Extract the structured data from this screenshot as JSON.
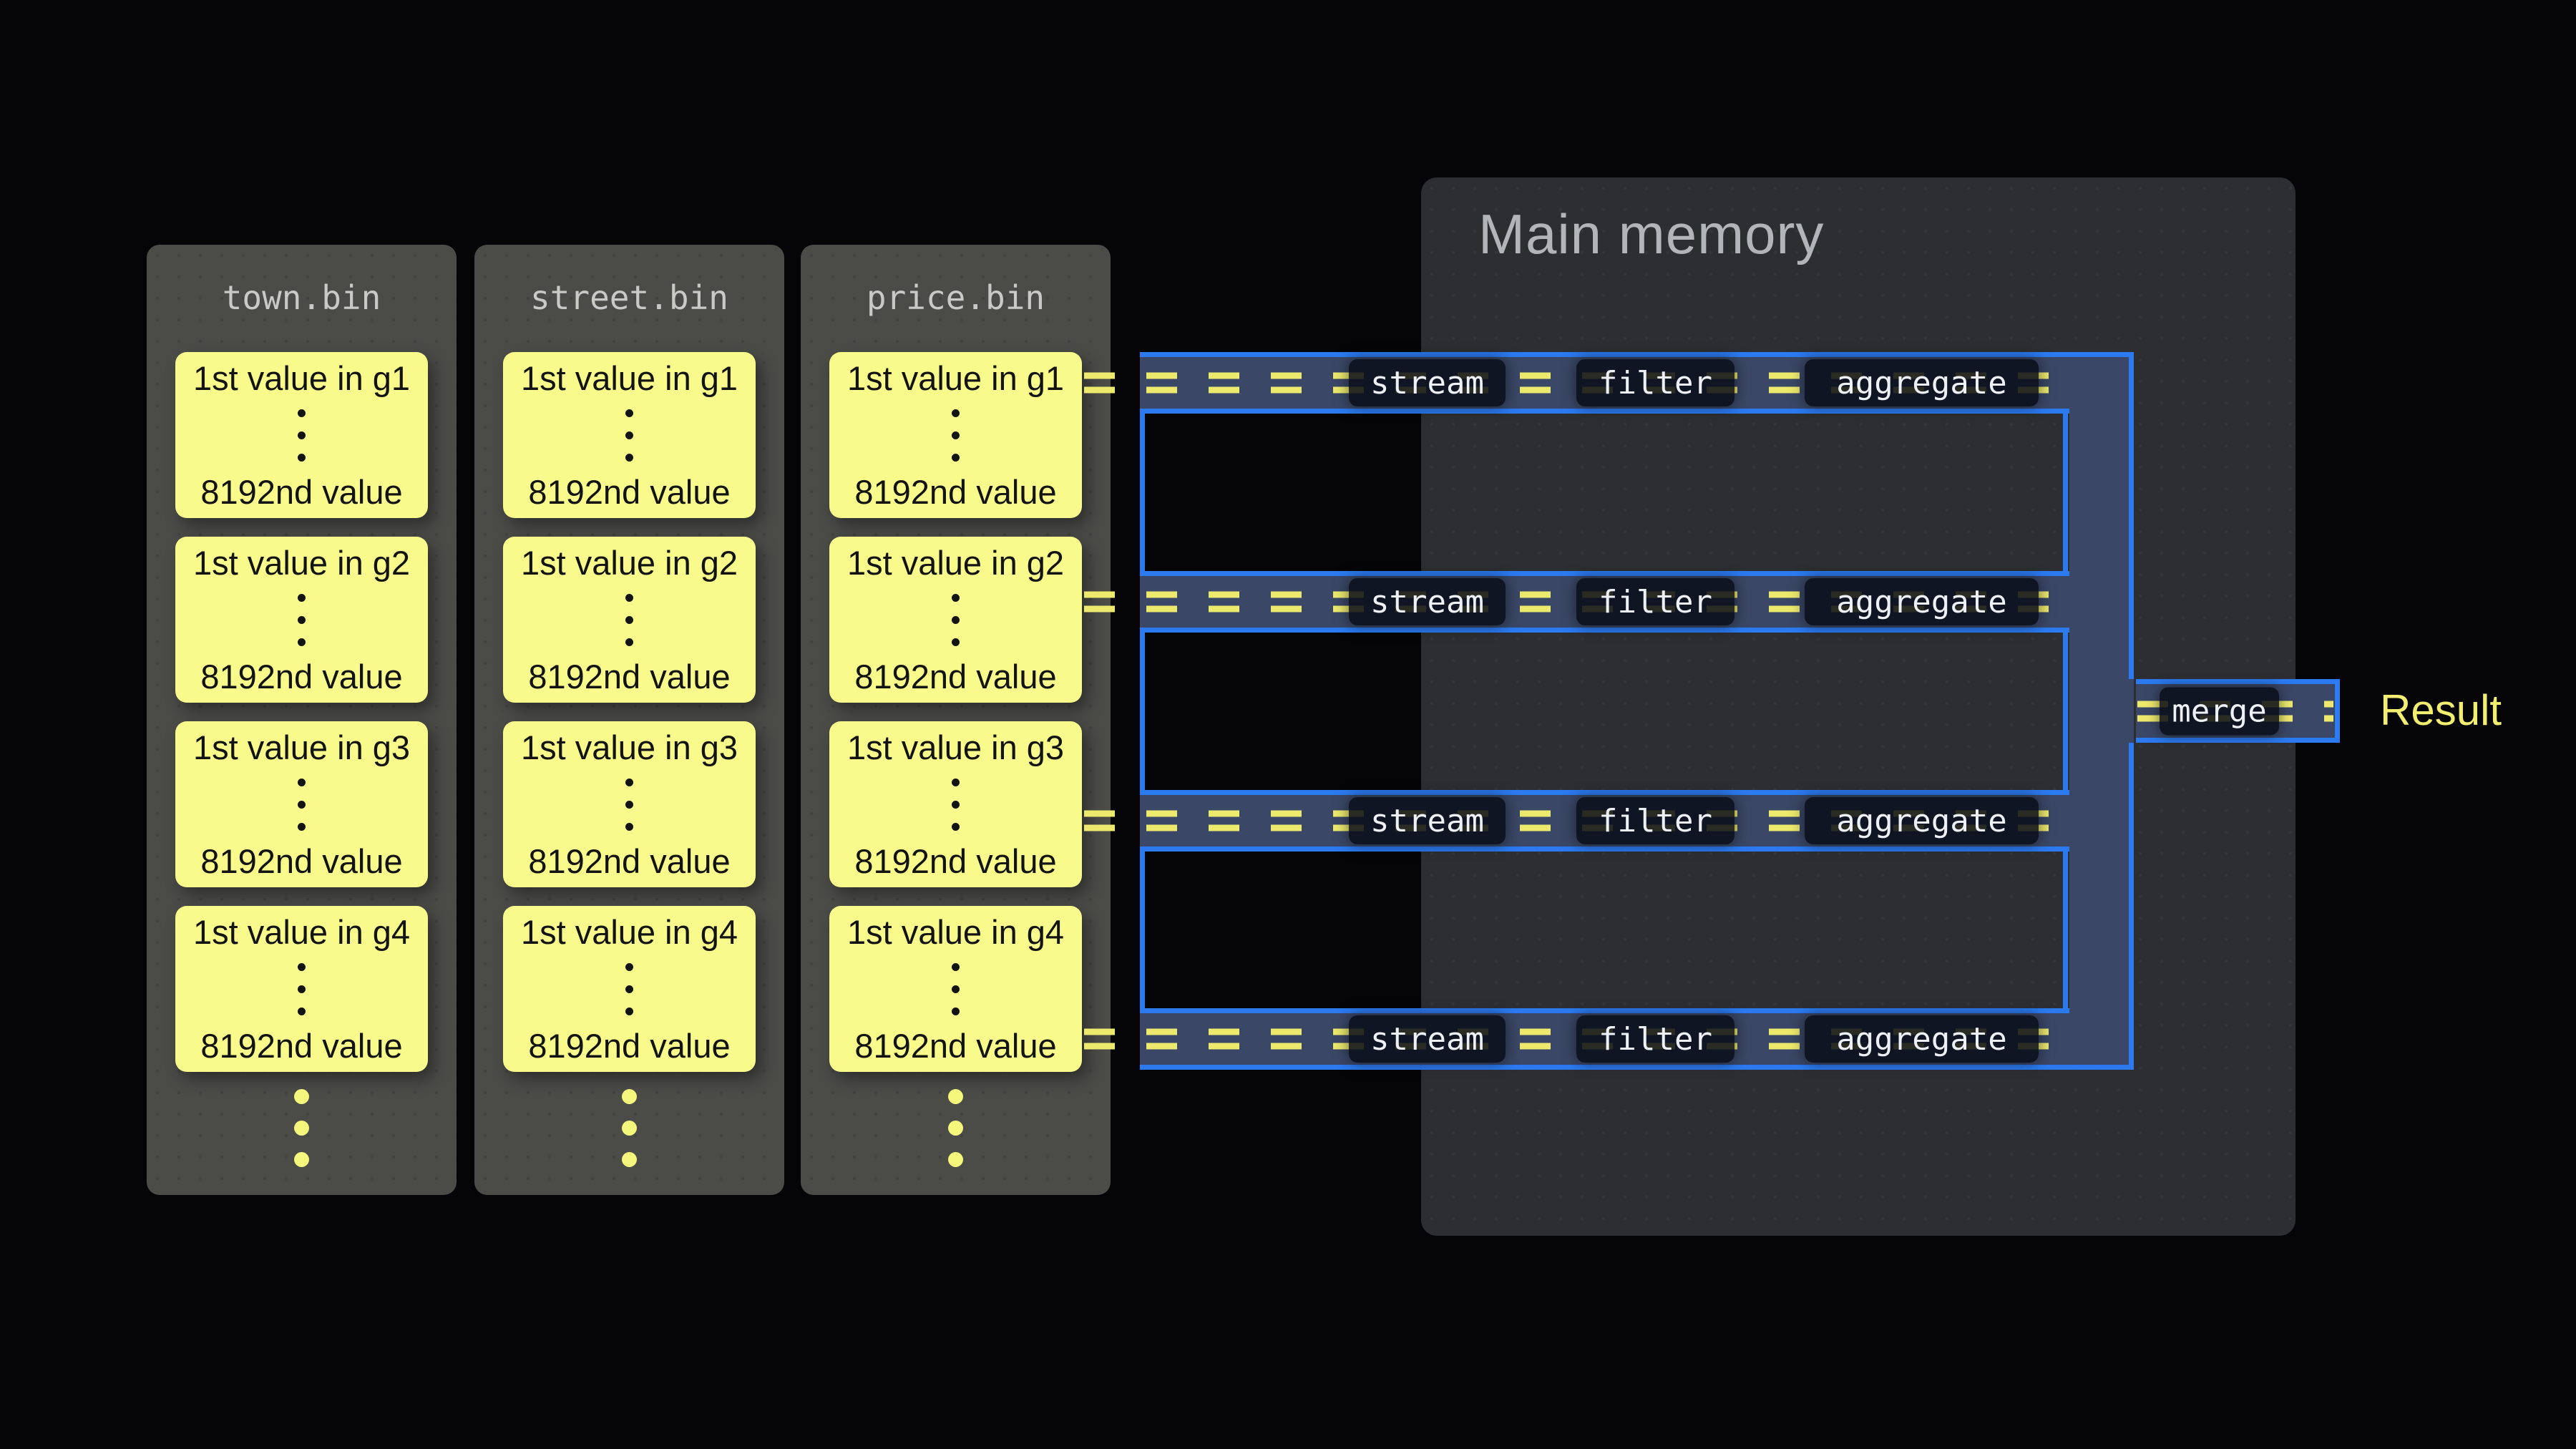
{
  "colors": {
    "accent_blue": "#2b7af0",
    "pipe_fill": "#3a4766",
    "dash_yellow": "#ece96d",
    "block_yellow": "#f8fa8b",
    "result_yellow": "#f2ee70"
  },
  "files": [
    {
      "title": "town.bin",
      "blocks": [
        {
          "first": "1st value in g1",
          "last": "8192nd value"
        },
        {
          "first": "1st value in g2",
          "last": "8192nd value"
        },
        {
          "first": "1st value in g3",
          "last": "8192nd value"
        },
        {
          "first": "1st value in g4",
          "last": "8192nd value"
        }
      ]
    },
    {
      "title": "street.bin",
      "blocks": [
        {
          "first": "1st value in g1",
          "last": "8192nd value"
        },
        {
          "first": "1st value in g2",
          "last": "8192nd value"
        },
        {
          "first": "1st value in g3",
          "last": "8192nd value"
        },
        {
          "first": "1st value in g4",
          "last": "8192nd value"
        }
      ]
    },
    {
      "title": "price.bin",
      "blocks": [
        {
          "first": "1st value in g1",
          "last": "8192nd value"
        },
        {
          "first": "1st value in g2",
          "last": "8192nd value"
        },
        {
          "first": "1st value in g3",
          "last": "8192nd value"
        },
        {
          "first": "1st value in g4",
          "last": "8192nd value"
        }
      ]
    }
  ],
  "memory": {
    "title": "Main memory"
  },
  "pipelines": [
    {
      "stages": [
        "stream",
        "filter",
        "aggregate"
      ]
    },
    {
      "stages": [
        "stream",
        "filter",
        "aggregate"
      ]
    },
    {
      "stages": [
        "stream",
        "filter",
        "aggregate"
      ]
    },
    {
      "stages": [
        "stream",
        "filter",
        "aggregate"
      ]
    }
  ],
  "merge": {
    "label": "merge"
  },
  "result": {
    "label": "Result"
  }
}
